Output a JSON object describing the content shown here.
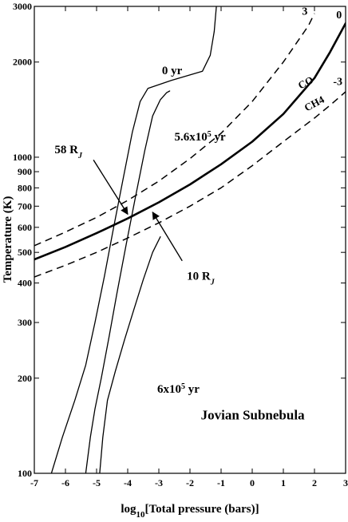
{
  "chart_data": {
    "type": "line",
    "xlabel_prefix": "log",
    "xlabel_sub": "10",
    "xlabel_rest": "[Total pressure (bars)]",
    "ylabel": "Temperature (K)",
    "xlim": [
      -7,
      3
    ],
    "ylim": [
      100,
      3000
    ],
    "yscale": "log",
    "x_ticks": [
      {
        "value": -7,
        "label": "-7"
      },
      {
        "value": -6,
        "label": "-6"
      },
      {
        "value": -5,
        "label": "-5"
      },
      {
        "value": -4,
        "label": "-4"
      },
      {
        "value": -3,
        "label": "-3"
      },
      {
        "value": -2,
        "label": "-2"
      },
      {
        "value": -1,
        "label": "-1"
      },
      {
        "value": 0,
        "label": "0"
      },
      {
        "value": 1,
        "label": "1"
      },
      {
        "value": 2,
        "label": "2"
      },
      {
        "value": 3,
        "label": "3"
      }
    ],
    "y_ticks": [
      {
        "value": 100,
        "label": "100"
      },
      {
        "value": 200,
        "label": "200"
      },
      {
        "value": 300,
        "label": "300"
      },
      {
        "value": 400,
        "label": "400"
      },
      {
        "value": 500,
        "label": "500"
      },
      {
        "value": 600,
        "label": "600"
      },
      {
        "value": 700,
        "label": "700"
      },
      {
        "value": 800,
        "label": "800"
      },
      {
        "value": 900,
        "label": "900"
      },
      {
        "value": 1000,
        "label": "1000"
      },
      {
        "value": 2000,
        "label": "2000"
      },
      {
        "value": 3000,
        "label": "3000"
      }
    ],
    "series": [
      {
        "style": "solid",
        "width": 1.3,
        "points": [
          [
            -6.45,
            100
          ],
          [
            -6.1,
            130
          ],
          [
            -5.7,
            170
          ],
          [
            -5.35,
            220
          ],
          [
            -5.05,
            300
          ],
          [
            -4.75,
            420
          ],
          [
            -4.45,
            600
          ],
          [
            -4.15,
            850
          ],
          [
            -3.85,
            1200
          ],
          [
            -3.6,
            1500
          ],
          [
            -3.35,
            1650
          ],
          [
            -2.6,
            1750
          ],
          [
            -1.6,
            1870
          ],
          [
            -1.35,
            2100
          ],
          [
            -1.22,
            2500
          ],
          [
            -1.15,
            3000
          ]
        ]
      },
      {
        "style": "solid",
        "width": 1.3,
        "points": [
          [
            -5.35,
            100
          ],
          [
            -5.2,
            130
          ],
          [
            -5.05,
            160
          ],
          [
            -4.85,
            200
          ],
          [
            -4.6,
            270
          ],
          [
            -4.35,
            370
          ],
          [
            -4.05,
            530
          ],
          [
            -3.75,
            750
          ],
          [
            -3.45,
            1050
          ],
          [
            -3.2,
            1350
          ],
          [
            -2.95,
            1520
          ],
          [
            -2.75,
            1600
          ],
          [
            -2.65,
            1620
          ]
        ]
      },
      {
        "style": "solid",
        "width": 1.3,
        "points": [
          [
            -4.9,
            100
          ],
          [
            -4.8,
            130
          ],
          [
            -4.65,
            170
          ],
          [
            -4.4,
            210
          ],
          [
            -4.1,
            265
          ],
          [
            -3.8,
            330
          ],
          [
            -3.5,
            410
          ],
          [
            -3.2,
            500
          ],
          [
            -2.95,
            560
          ]
        ]
      },
      {
        "style": "solid",
        "width": 2.6,
        "points": [
          [
            -7,
            475
          ],
          [
            -6,
            520
          ],
          [
            -5,
            575
          ],
          [
            -4,
            640
          ],
          [
            -3,
            720
          ],
          [
            -2,
            820
          ],
          [
            -1,
            950
          ],
          [
            0,
            1120
          ],
          [
            1,
            1370
          ],
          [
            2,
            1780
          ],
          [
            2.5,
            2150
          ],
          [
            3,
            2650
          ]
        ]
      },
      {
        "style": "dashed",
        "width": 1.5,
        "points": [
          [
            -7,
            525
          ],
          [
            -6,
            580
          ],
          [
            -5,
            645
          ],
          [
            -4,
            730
          ],
          [
            -3,
            840
          ],
          [
            -2,
            990
          ],
          [
            -1,
            1190
          ],
          [
            0,
            1500
          ],
          [
            1,
            2000
          ],
          [
            1.8,
            2600
          ],
          [
            2,
            2850
          ]
        ]
      },
      {
        "style": "dashed",
        "width": 1.5,
        "points": [
          [
            -7,
            418
          ],
          [
            -6,
            455
          ],
          [
            -5,
            500
          ],
          [
            -4,
            555
          ],
          [
            -3,
            620
          ],
          [
            -2,
            700
          ],
          [
            -1,
            800
          ],
          [
            0,
            940
          ],
          [
            1,
            1120
          ],
          [
            2,
            1330
          ],
          [
            2.5,
            1460
          ],
          [
            3,
            1610
          ]
        ]
      }
    ],
    "curve_labels": [
      {
        "text": "0 yr",
        "x": -2.9,
        "y": 1830,
        "size": 15
      },
      {
        "text": "5.6x10",
        "sup": "5",
        "tail": " yr",
        "x": -2.5,
        "y": 1130,
        "size": 15
      },
      {
        "text": "6x10",
        "sup": "5",
        "tail": " yr",
        "x": -3.05,
        "y": 180,
        "size": 15
      },
      {
        "text": "3",
        "x": 1.6,
        "y": 2820,
        "size": 14
      },
      {
        "text": "0",
        "x": 2.7,
        "y": 2750,
        "size": 14
      },
      {
        "text": "-3",
        "x": 2.6,
        "y": 1690,
        "size": 14
      },
      {
        "text": "Jovian Subnebula",
        "x": -1.65,
        "y": 148,
        "size": 17
      }
    ],
    "boundary_labels": [
      {
        "text": "CO",
        "x": 1.55,
        "y": 1640,
        "rotate": -28
      },
      {
        "text": "CH4",
        "x": 1.75,
        "y": 1395,
        "rotate": -28
      }
    ],
    "arrows": [
      {
        "text": "58 R",
        "sub": "J",
        "label_x": -6.35,
        "label_y": 1030,
        "from": [
          -5.1,
          980
        ],
        "to": [
          -4.0,
          660
        ]
      },
      {
        "text": "10 R",
        "sub": "J",
        "label_x": -2.1,
        "label_y": 410,
        "from": [
          -2.25,
          470
        ],
        "to": [
          -3.2,
          670
        ]
      }
    ]
  }
}
